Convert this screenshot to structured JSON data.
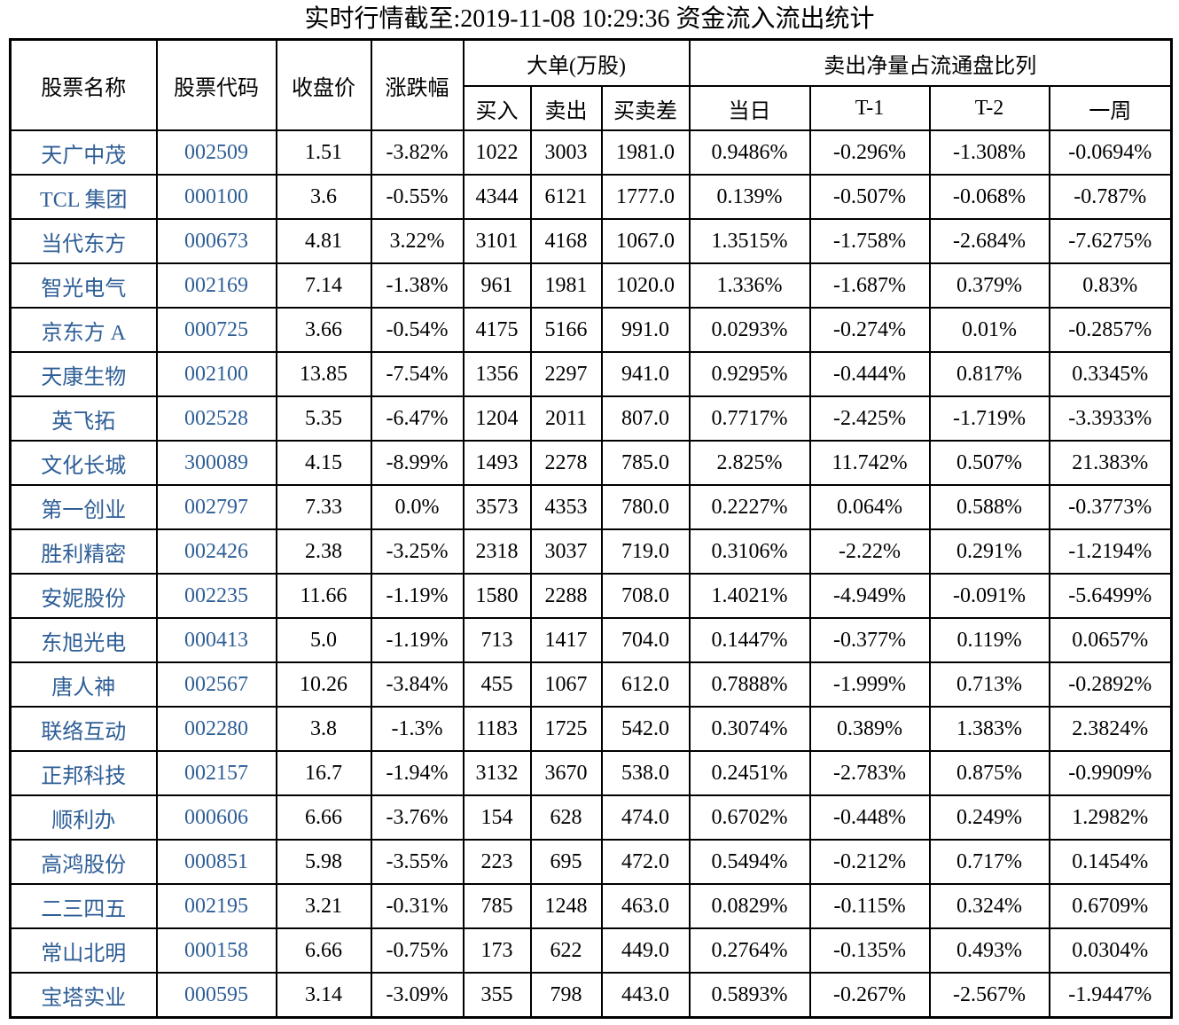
{
  "title": "实时行情截至:2019-11-08 10:29:36 资金流入流出统计",
  "colors": {
    "stock_text": "#2E5E96",
    "body_text": "#000000",
    "border": "#000000",
    "background": "#FFFFFF"
  },
  "chart_data": {
    "type": "table",
    "title": "实时行情截至:2019-11-08 10:29:36 资金流入流出统计",
    "column_groups": [
      {
        "label": "大单(万股)",
        "columns": [
          "买入",
          "卖出",
          "买卖差"
        ]
      },
      {
        "label": "卖出净量占流通盘比列",
        "columns": [
          "当日",
          "T-1",
          "T-2",
          "一周"
        ]
      }
    ],
    "columns": [
      "股票名称",
      "股票代码",
      "收盘价",
      "涨跌幅",
      "买入",
      "卖出",
      "买卖差",
      "当日",
      "T-1",
      "T-2",
      "一周"
    ],
    "rows": [
      [
        "天广中茂",
        "002509",
        "1.51",
        "-3.82%",
        "1022",
        "3003",
        "1981.0",
        "0.9486%",
        "-0.296%",
        "-1.308%",
        "-0.0694%"
      ],
      [
        "TCL 集团",
        "000100",
        "3.6",
        "-0.55%",
        "4344",
        "6121",
        "1777.0",
        "0.139%",
        "-0.507%",
        "-0.068%",
        "-0.787%"
      ],
      [
        "当代东方",
        "000673",
        "4.81",
        "3.22%",
        "3101",
        "4168",
        "1067.0",
        "1.3515%",
        "-1.758%",
        "-2.684%",
        "-7.6275%"
      ],
      [
        "智光电气",
        "002169",
        "7.14",
        "-1.38%",
        "961",
        "1981",
        "1020.0",
        "1.336%",
        "-1.687%",
        "0.379%",
        "0.83%"
      ],
      [
        "京东方 A",
        "000725",
        "3.66",
        "-0.54%",
        "4175",
        "5166",
        "991.0",
        "0.0293%",
        "-0.274%",
        "0.01%",
        "-0.2857%"
      ],
      [
        "天康生物",
        "002100",
        "13.85",
        "-7.54%",
        "1356",
        "2297",
        "941.0",
        "0.9295%",
        "-0.444%",
        "0.817%",
        "0.3345%"
      ],
      [
        "英飞拓",
        "002528",
        "5.35",
        "-6.47%",
        "1204",
        "2011",
        "807.0",
        "0.7717%",
        "-2.425%",
        "-1.719%",
        "-3.3933%"
      ],
      [
        "文化长城",
        "300089",
        "4.15",
        "-8.99%",
        "1493",
        "2278",
        "785.0",
        "2.825%",
        "11.742%",
        "0.507%",
        "21.383%"
      ],
      [
        "第一创业",
        "002797",
        "7.33",
        "0.0%",
        "3573",
        "4353",
        "780.0",
        "0.2227%",
        "0.064%",
        "0.588%",
        "-0.3773%"
      ],
      [
        "胜利精密",
        "002426",
        "2.38",
        "-3.25%",
        "2318",
        "3037",
        "719.0",
        "0.3106%",
        "-2.22%",
        "0.291%",
        "-1.2194%"
      ],
      [
        "安妮股份",
        "002235",
        "11.66",
        "-1.19%",
        "1580",
        "2288",
        "708.0",
        "1.4021%",
        "-4.949%",
        "-0.091%",
        "-5.6499%"
      ],
      [
        "东旭光电",
        "000413",
        "5.0",
        "-1.19%",
        "713",
        "1417",
        "704.0",
        "0.1447%",
        "-0.377%",
        "0.119%",
        "0.0657%"
      ],
      [
        "唐人神",
        "002567",
        "10.26",
        "-3.84%",
        "455",
        "1067",
        "612.0",
        "0.7888%",
        "-1.999%",
        "0.713%",
        "-0.2892%"
      ],
      [
        "联络互动",
        "002280",
        "3.8",
        "-1.3%",
        "1183",
        "1725",
        "542.0",
        "0.3074%",
        "0.389%",
        "1.383%",
        "2.3824%"
      ],
      [
        "正邦科技",
        "002157",
        "16.7",
        "-1.94%",
        "3132",
        "3670",
        "538.0",
        "0.2451%",
        "-2.783%",
        "0.875%",
        "-0.9909%"
      ],
      [
        "顺利办",
        "000606",
        "6.66",
        "-3.76%",
        "154",
        "628",
        "474.0",
        "0.6702%",
        "-0.448%",
        "0.249%",
        "1.2982%"
      ],
      [
        "高鸿股份",
        "000851",
        "5.98",
        "-3.55%",
        "223",
        "695",
        "472.0",
        "0.5494%",
        "-0.212%",
        "0.717%",
        "0.1454%"
      ],
      [
        "二三四五",
        "002195",
        "3.21",
        "-0.31%",
        "785",
        "1248",
        "463.0",
        "0.0829%",
        "-0.115%",
        "0.324%",
        "0.6709%"
      ],
      [
        "常山北明",
        "000158",
        "6.66",
        "-0.75%",
        "173",
        "622",
        "449.0",
        "0.2764%",
        "-0.135%",
        "0.493%",
        "0.0304%"
      ],
      [
        "宝塔实业",
        "000595",
        "3.14",
        "-3.09%",
        "355",
        "798",
        "443.0",
        "0.5893%",
        "-0.267%",
        "-2.567%",
        "-1.9447%"
      ]
    ]
  }
}
